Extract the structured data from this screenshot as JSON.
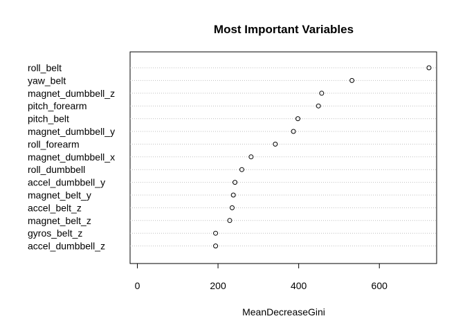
{
  "chart_data": {
    "type": "scatter",
    "subtype": "dotchart",
    "title": "Most Important Variables",
    "xlabel": "MeanDecreaseGini",
    "ylabel": "",
    "xlim": [
      -18,
      742
    ],
    "xticks": [
      0,
      200,
      400,
      600
    ],
    "grid": "dotted horizontal lines per category",
    "categories": [
      "roll_belt",
      "yaw_belt",
      "magnet_dumbbell_z",
      "pitch_forearm",
      "pitch_belt",
      "magnet_dumbbell_y",
      "roll_forearm",
      "magnet_dumbbell_x",
      "roll_dumbbell",
      "accel_dumbbell_y",
      "magnet_belt_y",
      "accel_belt_z",
      "magnet_belt_z",
      "gyros_belt_z",
      "accel_dumbbell_z"
    ],
    "values": [
      723,
      532,
      457,
      449,
      398,
      387,
      342,
      282,
      259,
      242,
      238,
      235,
      229,
      194,
      194
    ]
  }
}
